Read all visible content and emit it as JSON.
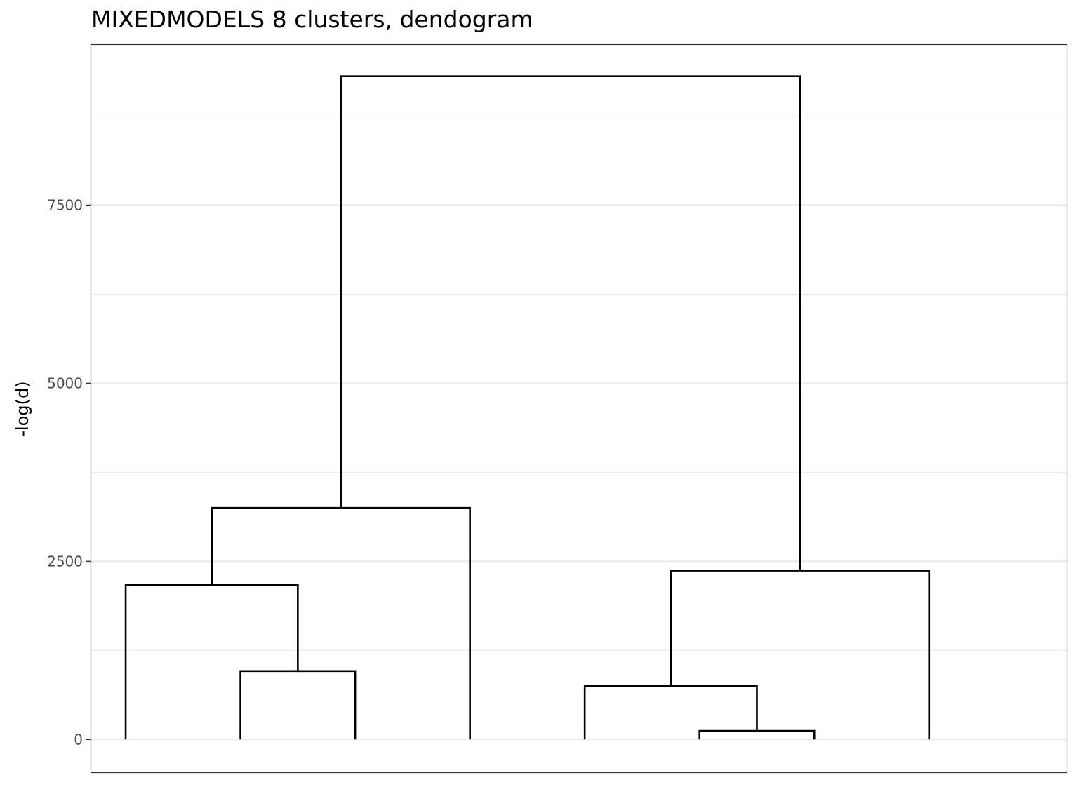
{
  "chart_data": {
    "type": "dendrogram",
    "title": "MIXEDMODELS 8 clusters, dendogram",
    "xlabel": "",
    "ylabel": "-log(d)",
    "ylim": [
      -460,
      9750
    ],
    "y_ticks": [
      0,
      2500,
      5000,
      7500
    ],
    "y_tick_labels": [
      "0",
      "2500",
      "5000",
      "7500"
    ],
    "y_minor_ticks": [
      1250,
      3750,
      6250,
      8750
    ],
    "grid": true,
    "leaves": [
      1,
      2,
      3,
      4,
      5,
      6,
      7,
      8
    ],
    "merges": [
      {
        "left": 7,
        "right": 6,
        "height": 120
      },
      {
        "left": 5,
        "right": 6.5,
        "height": 750
      },
      {
        "left": 2,
        "right": 3,
        "height": 960
      },
      {
        "left": 1,
        "right": 2.5,
        "height": 2170
      },
      {
        "left": 5.75,
        "right": 8,
        "height": 2370
      },
      {
        "left": 1.75,
        "right": 4,
        "height": 3250
      },
      {
        "left": 2.875,
        "right": 6.875,
        "height": 9310
      }
    ]
  }
}
